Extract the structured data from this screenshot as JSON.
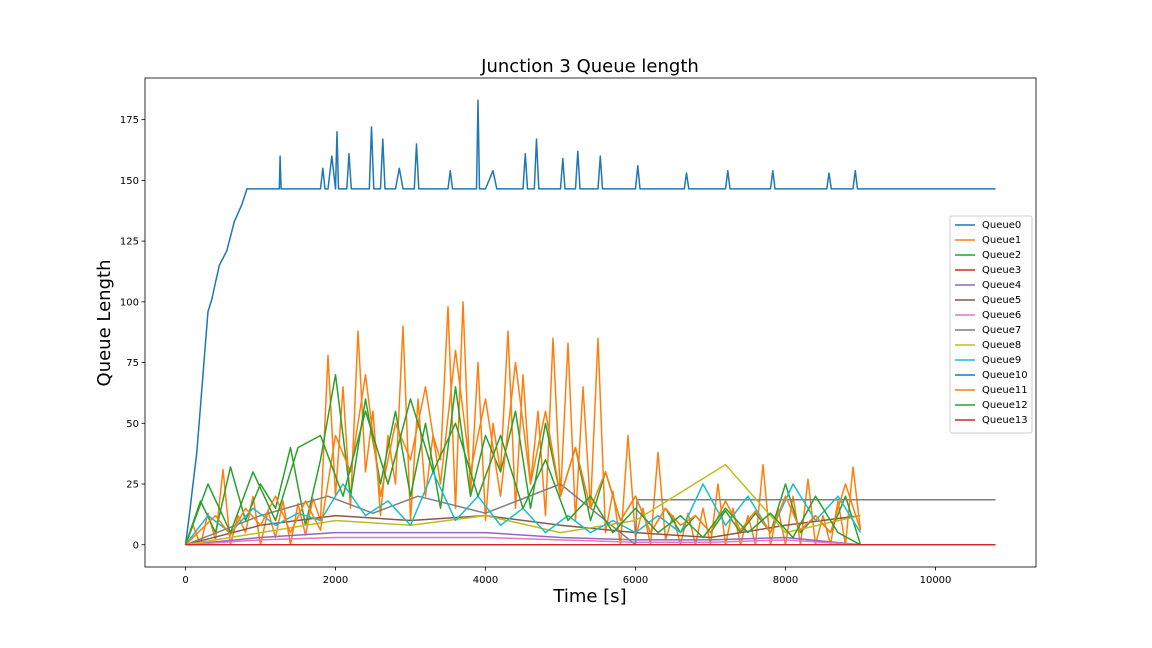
{
  "chart_data": {
    "type": "line",
    "title": "Junction 3 Queue length",
    "x_label": "Time [s]",
    "y_label": "Queue Length",
    "xlim": [
      -540,
      11340
    ],
    "ylim": [
      -9.15,
      192.15
    ],
    "xticks": [
      0,
      2000,
      4000,
      6000,
      8000,
      10000
    ],
    "yticks": [
      0,
      25,
      50,
      75,
      100,
      125,
      150,
      175
    ],
    "legend": "right",
    "series": [
      {
        "name": "Queue0",
        "color": "#1f77b4",
        "x": [
          0,
          50,
          100,
          150,
          200,
          250,
          300,
          350,
          400,
          450,
          550,
          650,
          750,
          820,
          1250,
          1262,
          1275,
          1800,
          1830,
          1860,
          1900,
          1950,
          2000,
          2020,
          2040,
          2150,
          2180,
          2210,
          2450,
          2480,
          2510,
          2600,
          2630,
          2660,
          2800,
          2850,
          2900,
          3050,
          3080,
          3110,
          3500,
          3530,
          3560,
          3880,
          3900,
          3920,
          4000,
          4100,
          4150,
          4500,
          4530,
          4560,
          4650,
          4680,
          4710,
          5000,
          5030,
          5060,
          5200,
          5230,
          5260,
          5500,
          5530,
          5560,
          6000,
          6030,
          6060,
          6650,
          6680,
          6710,
          7200,
          7230,
          7260,
          7800,
          7830,
          7860,
          8550,
          8580,
          8610,
          8900,
          8930,
          8960,
          10800
        ],
        "values": [
          0,
          12,
          25,
          38,
          57,
          77,
          96,
          101,
          108,
          115,
          121,
          133,
          140,
          146.5,
          146.5,
          160,
          146.5,
          146.5,
          155,
          146.5,
          146.5,
          160,
          146.5,
          170,
          146.5,
          146.5,
          161,
          146.5,
          146.5,
          172,
          146.5,
          146.5,
          167,
          146.5,
          146.5,
          155,
          146.5,
          146.5,
          165,
          146.5,
          146.5,
          154,
          146.5,
          146.5,
          183,
          146.5,
          146.5,
          154,
          146.5,
          146.5,
          161,
          146.5,
          146.5,
          167,
          146.5,
          146.5,
          159,
          146.5,
          146.5,
          162,
          146.5,
          146.5,
          160,
          146.5,
          146.5,
          156,
          146.5,
          146.5,
          153,
          146.5,
          146.5,
          154,
          146.5,
          146.5,
          154,
          146.5,
          146.5,
          153,
          146.5,
          146.5,
          154,
          146.5,
          146.5
        ]
      },
      {
        "name": "Queue1",
        "color": "#ff7f0e",
        "x": [
          0,
          100,
          200,
          300,
          400,
          500,
          600,
          700,
          800,
          900,
          1000,
          1100,
          1200,
          1300,
          1400,
          1500,
          1600,
          1700,
          1800,
          1900,
          2000,
          2100,
          2200,
          2300,
          2400,
          2500,
          2600,
          2700,
          2800,
          2900,
          3000,
          3100,
          3200,
          3300,
          3400,
          3500,
          3600,
          3700,
          3800,
          3900,
          4000,
          4100,
          4200,
          4300,
          4400,
          4500,
          4600,
          4700,
          4800,
          4900,
          5000,
          5100,
          5200,
          5300,
          5400,
          5500,
          5600,
          5700,
          5800,
          5900,
          6000,
          6100,
          6200,
          6300,
          6400,
          6500,
          6600,
          6700,
          6800,
          6900,
          7000,
          7100,
          7200,
          7300,
          7400,
          7500,
          7600,
          7700,
          7800,
          7900,
          8000,
          8100,
          8200,
          8300,
          8400,
          8500,
          8600,
          8700,
          8800,
          8900,
          9000
        ],
        "values": [
          0,
          8,
          0,
          13,
          2,
          31,
          0,
          12,
          5,
          20,
          0,
          14,
          3,
          18,
          0,
          17,
          4,
          19,
          10,
          78,
          20,
          65,
          15,
          88,
          30,
          55,
          12,
          45,
          25,
          90,
          10,
          60,
          20,
          45,
          35,
          98,
          15,
          100,
          20,
          75,
          10,
          50,
          30,
          88,
          15,
          70,
          25,
          55,
          12,
          85,
          20,
          83,
          10,
          65,
          15,
          85,
          5,
          22,
          0,
          45,
          3,
          15,
          0,
          38,
          2,
          12,
          0,
          13,
          0,
          15,
          0,
          25,
          0,
          15,
          0,
          12,
          0,
          33,
          0,
          15,
          0,
          20,
          0,
          27,
          0,
          12,
          0,
          18,
          0,
          32,
          6
        ]
      },
      {
        "name": "Queue2",
        "color": "#2ca02c",
        "x": [
          0,
          200,
          400,
          600,
          800,
          1000,
          1200,
          1400,
          1600,
          1800,
          2000,
          2200,
          2400,
          2600,
          2800,
          3000,
          3200,
          3400,
          3600,
          3800,
          4000,
          4200,
          4400,
          4600,
          4800,
          5000,
          5200,
          5400,
          5600,
          5800,
          6000,
          6200,
          6400,
          6600,
          6800,
          7000,
          7200,
          7400,
          7600,
          7800,
          8000,
          8200,
          8400,
          8600,
          8800,
          9000
        ],
        "values": [
          0,
          18,
          5,
          32,
          10,
          25,
          15,
          40,
          8,
          35,
          70,
          20,
          60,
          25,
          55,
          20,
          50,
          15,
          65,
          20,
          45,
          30,
          55,
          15,
          50,
          20,
          40,
          10,
          30,
          10,
          20,
          5,
          15,
          5,
          12,
          5,
          14,
          5,
          13,
          5,
          25,
          5,
          12,
          5,
          20,
          0
        ]
      },
      {
        "name": "Queue3",
        "color": "#d62728",
        "x": [
          0,
          10800
        ],
        "values": [
          0,
          0
        ]
      },
      {
        "name": "Queue4",
        "color": "#9467bd",
        "x": [
          0,
          1000,
          2000,
          3000,
          4000,
          5000,
          6000,
          7000,
          8000,
          9000
        ],
        "values": [
          0,
          3,
          5,
          5,
          5,
          3,
          2,
          2,
          3,
          0
        ]
      },
      {
        "name": "Queue5",
        "color": "#8c564b",
        "x": [
          0,
          1000,
          2000,
          3000,
          4000,
          5000,
          6000,
          7000,
          8000,
          9000
        ],
        "values": [
          0,
          8,
          12,
          10,
          12,
          8,
          5,
          3,
          8,
          12
        ]
      },
      {
        "name": "Queue6",
        "color": "#e377c2",
        "x": [
          0,
          1000,
          2000,
          3000,
          4000,
          5000,
          6000,
          7000,
          8000,
          9000
        ],
        "values": [
          0,
          2,
          3,
          3,
          3,
          2,
          1,
          1,
          2,
          0
        ]
      },
      {
        "name": "Queue7",
        "color": "#7f7f7f",
        "x": [
          0,
          1000,
          1900,
          2500,
          3100,
          4000,
          5000,
          6000,
          6020,
          10800
        ],
        "values": [
          0,
          12,
          20,
          13,
          20,
          13,
          25,
          0,
          18.5,
          18.5
        ]
      },
      {
        "name": "Queue8",
        "color": "#bcbd22",
        "x": [
          0,
          1000,
          2000,
          3000,
          4000,
          5000,
          6000,
          7200,
          8000,
          9000
        ],
        "values": [
          0,
          5,
          10,
          8,
          12,
          5,
          10,
          33,
          5,
          12
        ]
      },
      {
        "name": "Queue9",
        "color": "#17becf",
        "x": [
          0,
          300,
          600,
          900,
          1200,
          1500,
          1800,
          2100,
          2400,
          2700,
          3000,
          3300,
          3600,
          3900,
          4200,
          4500,
          4800,
          5100,
          5400,
          5700,
          6000,
          6300,
          6600,
          6900,
          7200,
          7500,
          7800,
          8100,
          8400,
          8700,
          9000
        ],
        "values": [
          0,
          12,
          5,
          15,
          8,
          13,
          10,
          25,
          12,
          18,
          8,
          30,
          10,
          20,
          8,
          15,
          5,
          12,
          5,
          10,
          5,
          12,
          5,
          25,
          8,
          20,
          5,
          25,
          10,
          20,
          5
        ]
      },
      {
        "name": "Queue10",
        "color": "#1f77b4",
        "x": [
          0,
          10800
        ],
        "values": [
          0,
          0
        ]
      },
      {
        "name": "Queue11",
        "color": "#ff7f0e",
        "x": [
          0,
          200,
          400,
          600,
          800,
          1000,
          1200,
          1400,
          1600,
          1800,
          2000,
          2200,
          2400,
          2600,
          2800,
          3000,
          3200,
          3400,
          3600,
          3800,
          4000,
          4200,
          4400,
          4600,
          4800,
          5000,
          5200,
          5400,
          5600,
          5800,
          6000,
          6200,
          6400,
          6600,
          6800,
          7000,
          7200,
          7400,
          7600,
          7800,
          8000,
          8200,
          8400,
          8600,
          8800,
          9000
        ],
        "values": [
          0,
          6,
          12,
          4,
          15,
          8,
          20,
          5,
          18,
          6,
          45,
          30,
          70,
          20,
          50,
          35,
          65,
          25,
          80,
          30,
          60,
          20,
          75,
          25,
          55,
          20,
          40,
          15,
          30,
          10,
          20,
          5,
          15,
          8,
          12,
          5,
          18,
          6,
          14,
          5,
          20,
          6,
          12,
          5,
          25,
          6
        ]
      },
      {
        "name": "Queue12",
        "color": "#2ca02c",
        "x": [
          0,
          300,
          600,
          900,
          1200,
          1500,
          1800,
          2100,
          2400,
          2700,
          3000,
          3300,
          3600,
          3900,
          4200,
          4500,
          4800,
          5100,
          5400,
          5700,
          6000,
          6300,
          6600,
          6900,
          7200,
          7500,
          7800,
          8100,
          8400,
          8700,
          9000
        ],
        "values": [
          0,
          25,
          5,
          30,
          10,
          40,
          45,
          20,
          55,
          25,
          60,
          30,
          50,
          20,
          45,
          15,
          35,
          10,
          20,
          5,
          15,
          5,
          12,
          3,
          15,
          5,
          13,
          3,
          20,
          5,
          0
        ]
      },
      {
        "name": "Queue13",
        "color": "#d62728",
        "x": [
          0,
          10800
        ],
        "values": [
          0,
          0
        ]
      }
    ]
  }
}
